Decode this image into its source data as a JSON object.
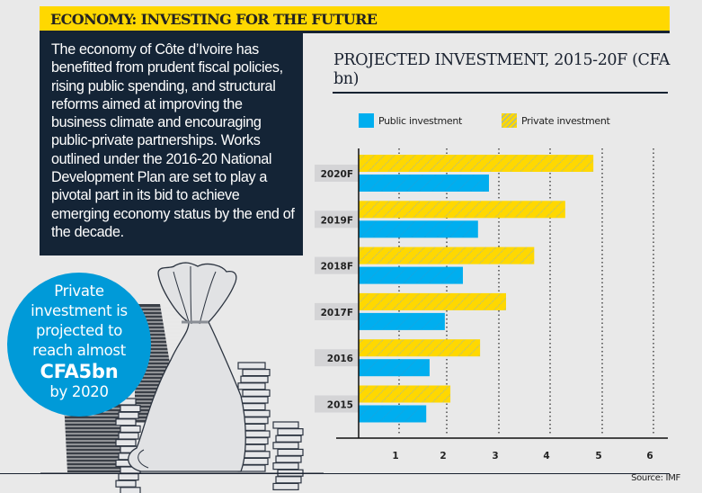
{
  "banner": {
    "title": "ECONOMY: INVESTING FOR THE FUTURE"
  },
  "intro": {
    "text": "The economy of Côte d’Ivoire has benefitted from prudent fiscal policies, rising public spending, and structural reforms aimed at improving the business climate and encouraging public-private partnerships. Works outlined under the 2016-20 National Development Plan are set to play a pivotal part in its bid to achieve emerging economy status by the end of the decade."
  },
  "callout": {
    "lines": [
      "Private",
      "investment is",
      "projected to",
      "reach almost"
    ],
    "highlight": "CFA5bn",
    "tail": "by 2020"
  },
  "colors": {
    "public": "#00aeef",
    "private": "#ffd800",
    "banner": "#ffd800",
    "panel": "#142436",
    "callout": "#009ad8"
  },
  "source": "Source: IMF",
  "chart_data": {
    "type": "bar",
    "orientation": "horizontal",
    "title": "PROJECTED INVESTMENT, 2015-20F (CFA bn)",
    "xlabel": "",
    "ylabel": "",
    "categories": [
      "2020F",
      "2019F",
      "2018F",
      "2017F",
      "2016",
      "2015"
    ],
    "series": [
      {
        "name": "Private investment",
        "values": [
          4.83,
          4.29,
          3.69,
          3.14,
          2.64,
          2.07
        ]
      },
      {
        "name": "Public investment",
        "values": [
          2.81,
          2.6,
          2.31,
          1.96,
          1.64,
          1.57
        ]
      }
    ],
    "xticks": [
      1,
      2,
      3,
      4,
      5,
      6
    ],
    "xlim": [
      0,
      6.2
    ],
    "grid": "vertical dotted",
    "legend": "top",
    "source": "Source: IMF"
  }
}
